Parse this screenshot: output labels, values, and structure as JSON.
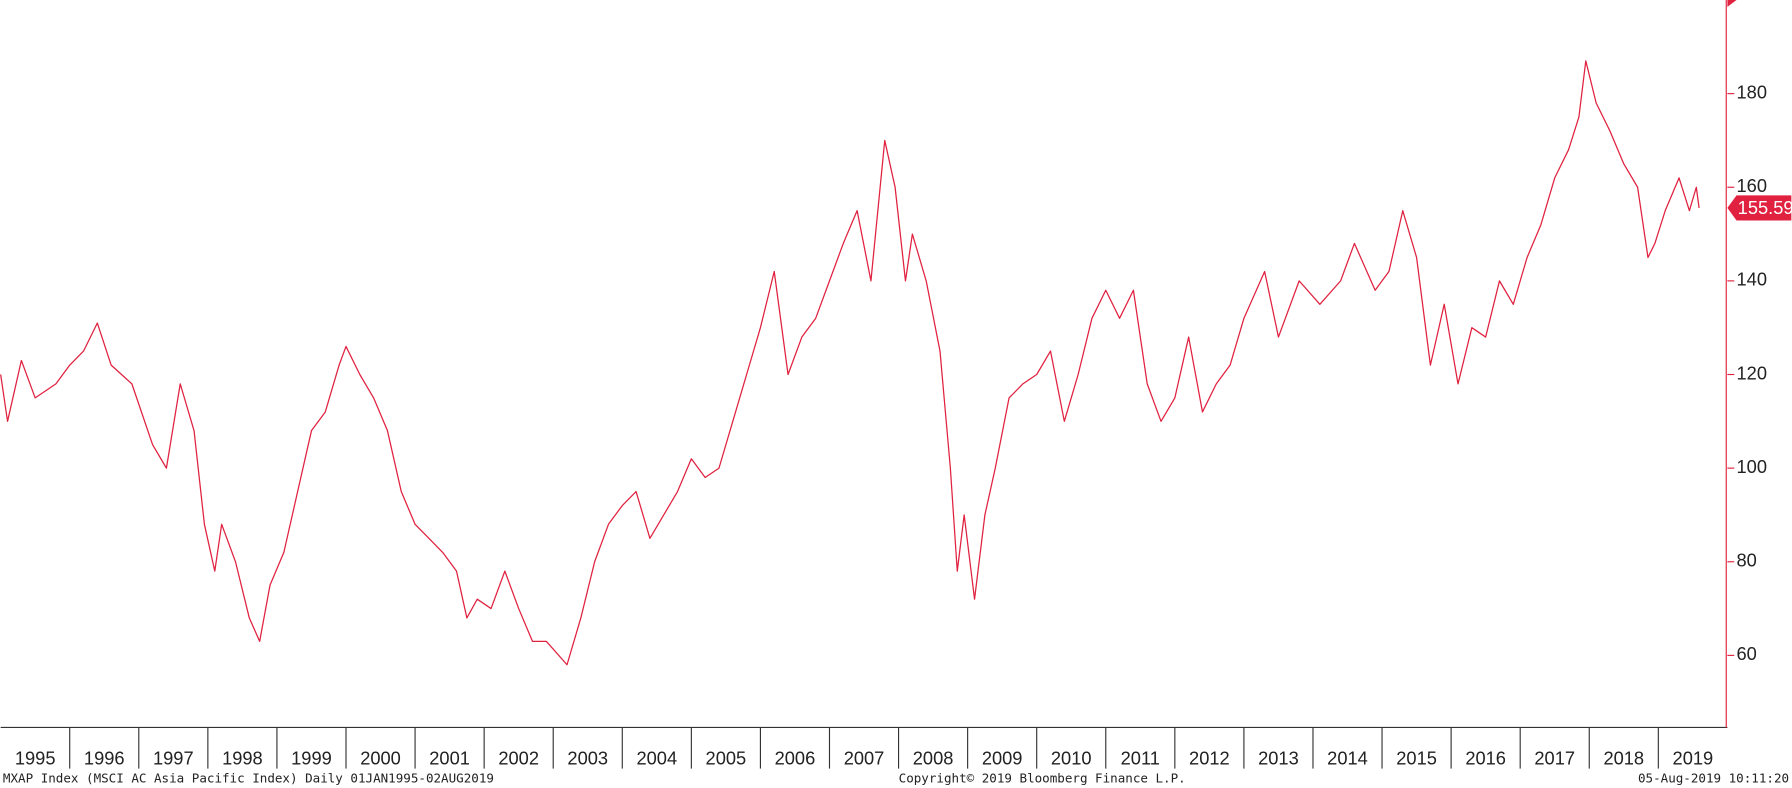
{
  "chart_data": {
    "type": "line",
    "footer_left": "MXAP Index (MSCI AC Asia Pacific Index)  Daily 01JAN1995-02AUG2019",
    "footer_center": "Copyright© 2019 Bloomberg Finance L.P.",
    "footer_right": "05-Aug-2019 10:11:20",
    "x": [
      1995.0,
      1995.1,
      1995.3,
      1995.5,
      1995.8,
      1996.0,
      1996.2,
      1996.4,
      1996.6,
      1996.9,
      1997.2,
      1997.4,
      1997.6,
      1997.8,
      1997.95,
      1998.1,
      1998.2,
      1998.4,
      1998.6,
      1998.75,
      1998.9,
      1999.1,
      1999.3,
      1999.5,
      1999.7,
      1999.9,
      2000.0,
      2000.2,
      2000.4,
      2000.6,
      2000.8,
      2001.0,
      2001.2,
      2001.4,
      2001.6,
      2001.75,
      2001.9,
      2002.1,
      2002.3,
      2002.5,
      2002.7,
      2002.9,
      2003.2,
      2003.4,
      2003.6,
      2003.8,
      2004.0,
      2004.2,
      2004.4,
      2004.6,
      2004.8,
      2005.0,
      2005.2,
      2005.4,
      2005.6,
      2005.8,
      2006.0,
      2006.2,
      2006.4,
      2006.6,
      2006.8,
      2007.0,
      2007.2,
      2007.4,
      2007.6,
      2007.8,
      2007.95,
      2008.1,
      2008.2,
      2008.4,
      2008.6,
      2008.75,
      2008.85,
      2008.95,
      2009.1,
      2009.25,
      2009.4,
      2009.6,
      2009.8,
      2010.0,
      2010.2,
      2010.4,
      2010.6,
      2010.8,
      2011.0,
      2011.2,
      2011.4,
      2011.6,
      2011.8,
      2012.0,
      2012.2,
      2012.4,
      2012.6,
      2012.8,
      2013.0,
      2013.3,
      2013.5,
      2013.8,
      2014.1,
      2014.4,
      2014.6,
      2014.9,
      2015.1,
      2015.3,
      2015.5,
      2015.7,
      2015.9,
      2016.1,
      2016.3,
      2016.5,
      2016.7,
      2016.9,
      2017.1,
      2017.3,
      2017.5,
      2017.7,
      2017.85,
      2017.95,
      2018.1,
      2018.3,
      2018.5,
      2018.7,
      2018.85,
      2018.95,
      2019.1,
      2019.3,
      2019.45,
      2019.55,
      2019.59
    ],
    "series": [
      {
        "color": "#e0213f",
        "values": [
          120,
          110,
          123,
          115,
          118,
          122,
          125,
          131,
          122,
          118,
          105,
          100,
          118,
          108,
          88,
          78,
          88,
          80,
          68,
          63,
          75,
          82,
          95,
          108,
          112,
          122,
          126,
          120,
          115,
          108,
          95,
          88,
          85,
          82,
          78,
          68,
          72,
          70,
          78,
          70,
          63,
          63,
          58,
          68,
          80,
          88,
          92,
          95,
          85,
          90,
          95,
          102,
          98,
          100,
          110,
          120,
          130,
          142,
          120,
          128,
          132,
          140,
          148,
          155,
          140,
          170,
          160,
          140,
          150,
          140,
          125,
          100,
          78,
          90,
          72,
          90,
          100,
          115,
          118,
          120,
          125,
          110,
          120,
          132,
          138,
          132,
          138,
          118,
          110,
          115,
          128,
          112,
          118,
          122,
          132,
          142,
          128,
          140,
          135,
          140,
          148,
          138,
          142,
          155,
          145,
          122,
          135,
          118,
          130,
          128,
          140,
          135,
          145,
          152,
          162,
          168,
          175,
          187,
          178,
          172,
          165,
          160,
          145,
          148,
          155,
          162,
          155,
          160,
          155.59
        ]
      }
    ],
    "last_value": 155.59,
    "xlim": [
      1995,
      2020
    ],
    "xticks": [
      1996,
      1997,
      1998,
      1999,
      2000,
      2001,
      2002,
      2003,
      2004,
      2005,
      2006,
      2007,
      2008,
      2009,
      2010,
      2011,
      2012,
      2013,
      2014,
      2015,
      2016,
      2017,
      2018,
      2019
    ],
    "years": [
      1995,
      1996,
      1997,
      1998,
      1999,
      2000,
      2001,
      2002,
      2003,
      2004,
      2005,
      2006,
      2007,
      2008,
      2009,
      2010,
      2011,
      2012,
      2013,
      2014,
      2015,
      2016,
      2017,
      2018,
      2019
    ],
    "ylim": [
      44.6,
      200
    ],
    "yticks": [
      60,
      80,
      100,
      120,
      140,
      160,
      180
    ]
  }
}
